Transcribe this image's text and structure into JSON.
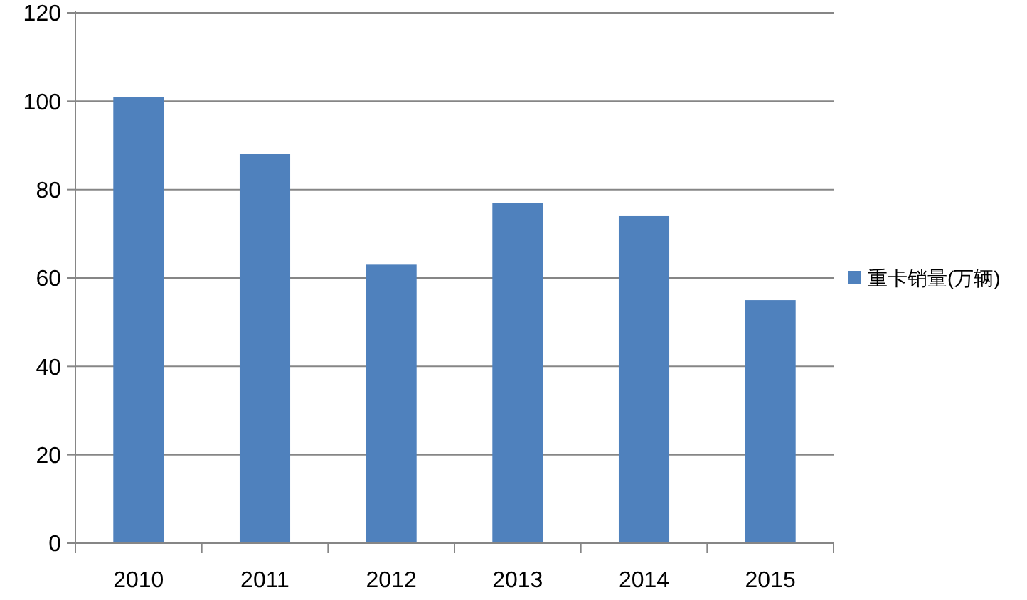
{
  "chart_data": {
    "type": "bar",
    "categories": [
      "2010",
      "2011",
      "2012",
      "2013",
      "2014",
      "2015"
    ],
    "series": [
      {
        "name": "重卡销量(万辆)",
        "color": "#4f81bd",
        "values": [
          101,
          88,
          63,
          77,
          74,
          55
        ]
      }
    ],
    "ylim": [
      0,
      120
    ],
    "yticks": [
      0,
      20,
      40,
      60,
      80,
      100,
      120
    ],
    "grid": "y",
    "legend": "right"
  }
}
